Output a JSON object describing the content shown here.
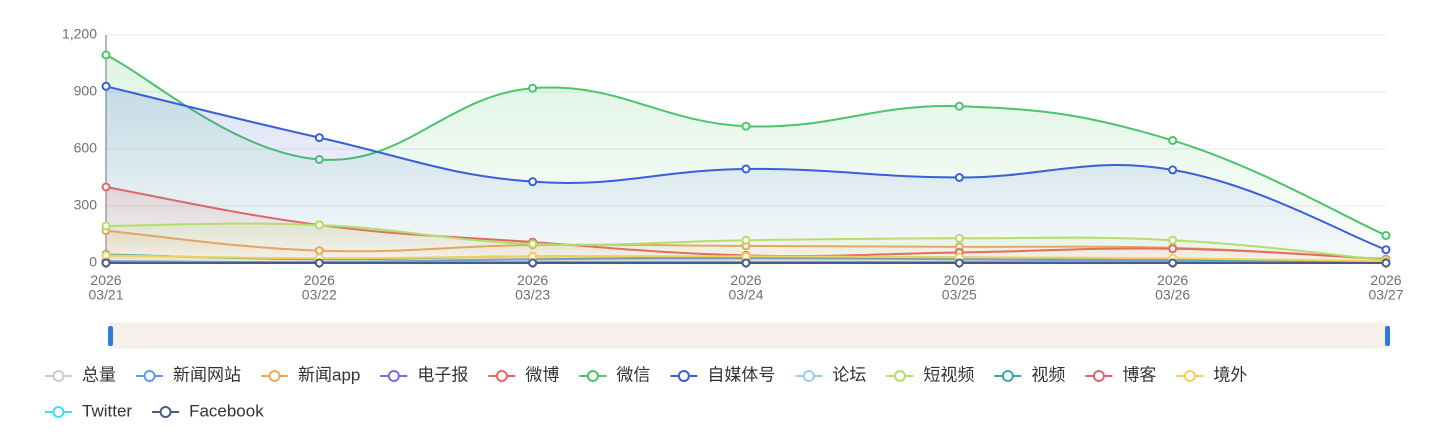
{
  "chart_data": {
    "type": "line",
    "smooth": true,
    "area": true,
    "grid": true,
    "categories": [
      "2026\n03/21",
      "2026\n03/22",
      "2026\n03/23",
      "2026\n03/24",
      "2026\n03/25",
      "2026\n03/26",
      "2026\n03/27"
    ],
    "ylim": [
      0,
      1200
    ],
    "yticks": [
      0,
      300,
      600,
      900,
      {
        "value": 1200,
        "label": "1,200"
      }
    ],
    "series": [
      {
        "name": "总量",
        "color": "#cccccc",
        "selected": false,
        "values": [
          null,
          null,
          null,
          null,
          null,
          null,
          null
        ]
      },
      {
        "name": "新闻网站",
        "color": "#5b9bf0",
        "values": [
          10,
          5,
          20,
          25,
          20,
          10,
          5
        ]
      },
      {
        "name": "新闻app",
        "color": "#f5a55a",
        "values": [
          170,
          65,
          95,
          90,
          85,
          80,
          20
        ]
      },
      {
        "name": "电子报",
        "color": "#7b68ee",
        "values": [
          2,
          2,
          2,
          2,
          2,
          2,
          2
        ]
      },
      {
        "name": "微博",
        "color": "#f0625f",
        "values": [
          400,
          200,
          110,
          40,
          55,
          75,
          20
        ]
      },
      {
        "name": "微信",
        "color": "#4cc46a",
        "values": [
          1095,
          545,
          920,
          720,
          825,
          645,
          145
        ]
      },
      {
        "name": "自媒体号",
        "color": "#3a5fd9",
        "values": [
          930,
          660,
          428,
          495,
          450,
          490,
          70
        ]
      },
      {
        "name": "论坛",
        "color": "#a0cdf0",
        "values": [
          5,
          3,
          5,
          5,
          5,
          4,
          2
        ]
      },
      {
        "name": "短视频",
        "color": "#b5dd6a",
        "values": [
          195,
          200,
          100,
          120,
          130,
          120,
          15
        ]
      },
      {
        "name": "视频",
        "color": "#3aa6a0",
        "values": [
          45,
          20,
          35,
          30,
          30,
          20,
          10
        ]
      },
      {
        "name": "博客",
        "color": "#d9676b",
        "values": [
          5,
          3,
          4,
          4,
          4,
          3,
          2
        ]
      },
      {
        "name": "境外",
        "color": "#f5cf5a",
        "values": [
          40,
          25,
          35,
          35,
          30,
          25,
          10
        ]
      },
      {
        "name": "Twitter",
        "color": "#3de0f0",
        "values": [
          0,
          0,
          0,
          0,
          0,
          0,
          0
        ]
      },
      {
        "name": "Facebook",
        "color": "#4a5a8a",
        "values": [
          0,
          0,
          0,
          0,
          0,
          0,
          0
        ]
      }
    ]
  }
}
